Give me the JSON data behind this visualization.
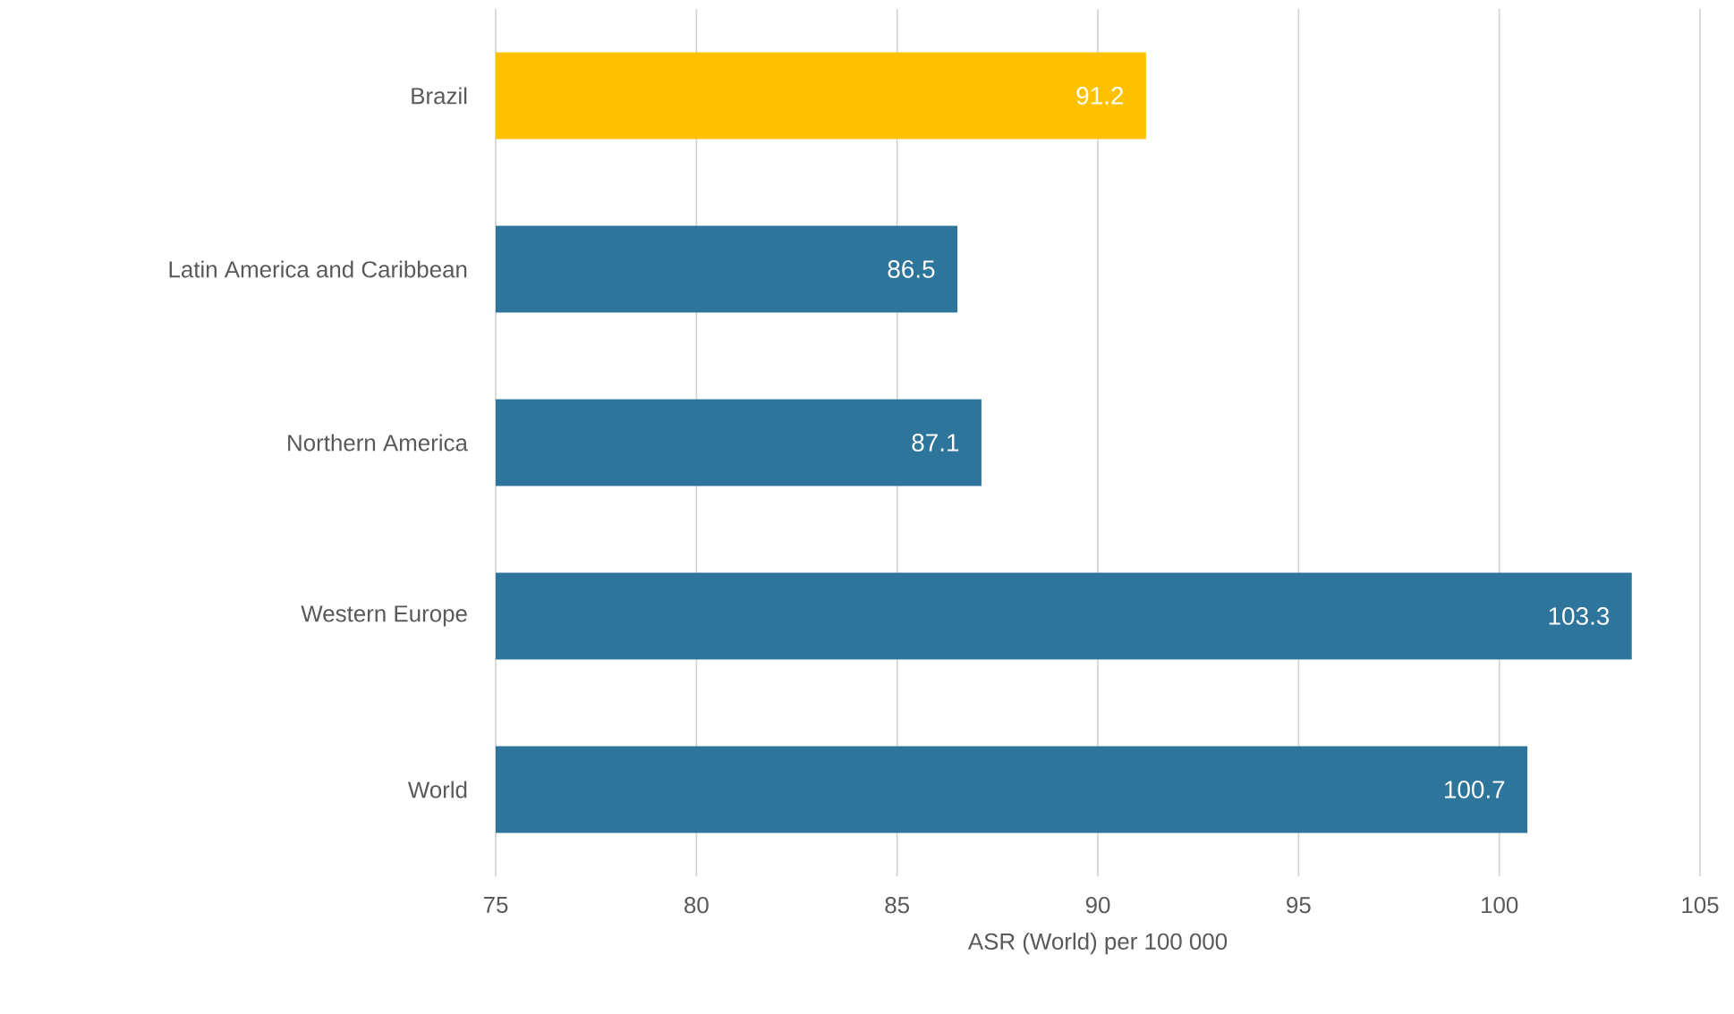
{
  "chart_data": {
    "type": "bar",
    "orientation": "horizontal",
    "categories": [
      "Brazil",
      "Latin America and Caribbean",
      "Northern America",
      "Western Europe",
      "World"
    ],
    "values": [
      91.2,
      86.5,
      87.1,
      103.3,
      100.7
    ],
    "colors": [
      "#ffc000",
      "#2e759b",
      "#2e759b",
      "#2e759b",
      "#2e759b"
    ],
    "xlabel": "ASR (World) per 100 000",
    "xlim": [
      75,
      105
    ],
    "xticks": [
      75,
      80,
      85,
      90,
      95,
      100,
      105
    ],
    "grid": "x",
    "data_labels": true
  }
}
